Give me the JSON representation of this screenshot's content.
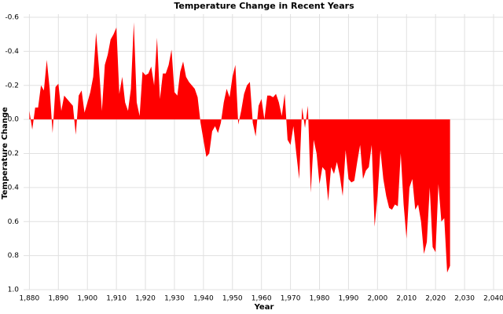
{
  "chart_data": {
    "type": "area",
    "title": "Temperature Change in Recent Years",
    "x_label": "Year",
    "y_label": "Temperature Change",
    "color": "#ff0000",
    "grid": true,
    "y_inverted": true,
    "xlim": [
      1878,
      2040
    ],
    "ylim": [
      -0.6,
      1.0
    ],
    "xticks": [
      {
        "value": 1880,
        "label": "1,880"
      },
      {
        "value": 1890,
        "label": "1,890"
      },
      {
        "value": 1900,
        "label": "1,900"
      },
      {
        "value": 1910,
        "label": "1,910"
      },
      {
        "value": 1920,
        "label": "1,920"
      },
      {
        "value": 1930,
        "label": "1,930"
      },
      {
        "value": 1940,
        "label": "1,940"
      },
      {
        "value": 1950,
        "label": "1,950"
      },
      {
        "value": 1960,
        "label": "1,960"
      },
      {
        "value": 1970,
        "label": "1,970"
      },
      {
        "value": 1980,
        "label": "1,980"
      },
      {
        "value": 1990,
        "label": "1,990"
      },
      {
        "value": 2000,
        "label": "2,000"
      },
      {
        "value": 2010,
        "label": "2,010"
      },
      {
        "value": 2020,
        "label": "2,020"
      },
      {
        "value": 2030,
        "label": "2,030"
      },
      {
        "value": 2040,
        "label": "2,040"
      }
    ],
    "yticks": [
      -0.6,
      -0.4,
      -0.2,
      {
        "value": 0,
        "label": "0.0"
      },
      0.2,
      0.4,
      0.6,
      0.8,
      {
        "value": 1,
        "label": "1.0"
      }
    ],
    "x": [
      1880,
      1881,
      1882,
      1883,
      1884,
      1885,
      1886,
      1887,
      1888,
      1889,
      1890,
      1891,
      1892,
      1893,
      1894,
      1895,
      1896,
      1897,
      1898,
      1899,
      1900,
      1901,
      1902,
      1903,
      1904,
      1905,
      1906,
      1907,
      1908,
      1909,
      1910,
      1911,
      1912,
      1913,
      1914,
      1915,
      1916,
      1917,
      1918,
      1919,
      1920,
      1921,
      1922,
      1923,
      1924,
      1925,
      1926,
      1927,
      1928,
      1929,
      1930,
      1931,
      1932,
      1933,
      1934,
      1935,
      1936,
      1937,
      1938,
      1939,
      1940,
      1941,
      1942,
      1943,
      1944,
      1945,
      1946,
      1947,
      1948,
      1949,
      1950,
      1951,
      1952,
      1953,
      1954,
      1955,
      1956,
      1957,
      1958,
      1959,
      1960,
      1961,
      1962,
      1963,
      1964,
      1965,
      1966,
      1967,
      1968,
      1969,
      1970,
      1971,
      1972,
      1973,
      1974,
      1975,
      1976,
      1977,
      1978,
      1979,
      1980,
      1981,
      1982,
      1983,
      1984,
      1985,
      1986,
      1987,
      1988,
      1989,
      1990,
      1991,
      1992,
      1993,
      1994,
      1995,
      1996,
      1997,
      1998,
      1999,
      2000,
      2001,
      2002,
      2003,
      2004,
      2005,
      2006,
      2007,
      2008,
      2009,
      2010,
      2011,
      2012,
      2013,
      2014,
      2015,
      2016,
      2017,
      2018,
      2019,
      2020,
      2021,
      2022,
      2023,
      2024,
      2025
    ],
    "values": [
      -0.05,
      0.06,
      -0.07,
      -0.07,
      -0.2,
      -0.17,
      -0.35,
      -0.18,
      0.08,
      -0.19,
      -0.21,
      -0.05,
      -0.14,
      -0.12,
      -0.1,
      -0.08,
      0.09,
      -0.14,
      -0.17,
      -0.04,
      -0.1,
      -0.16,
      -0.25,
      -0.51,
      -0.3,
      -0.05,
      -0.32,
      -0.38,
      -0.47,
      -0.5,
      -0.54,
      -0.15,
      -0.25,
      -0.1,
      -0.05,
      -0.18,
      -0.57,
      -0.1,
      -0.02,
      -0.28,
      -0.26,
      -0.27,
      -0.31,
      -0.2,
      -0.48,
      -0.12,
      -0.27,
      -0.27,
      -0.32,
      -0.41,
      -0.16,
      -0.14,
      -0.28,
      -0.34,
      -0.25,
      -0.22,
      -0.2,
      -0.18,
      -0.13,
      0.02,
      0.12,
      0.22,
      0.2,
      0.07,
      0.04,
      0.08,
      0.02,
      -0.1,
      -0.18,
      -0.13,
      -0.25,
      -0.32,
      0.03,
      -0.05,
      -0.15,
      -0.2,
      -0.22,
      0.02,
      0.1,
      -0.08,
      -0.12,
      0.0,
      -0.14,
      -0.14,
      -0.13,
      -0.15,
      -0.1,
      -0.02,
      -0.15,
      0.12,
      0.15,
      0.04,
      0.2,
      0.35,
      -0.07,
      0.05,
      -0.08,
      0.43,
      0.12,
      0.2,
      0.38,
      0.28,
      0.3,
      0.48,
      0.28,
      0.32,
      0.25,
      0.33,
      0.45,
      0.18,
      0.35,
      0.37,
      0.36,
      0.25,
      0.15,
      0.35,
      0.3,
      0.28,
      0.15,
      0.63,
      0.45,
      0.18,
      0.35,
      0.45,
      0.52,
      0.53,
      0.5,
      0.51,
      0.2,
      0.5,
      0.7,
      0.4,
      0.35,
      0.53,
      0.5,
      0.6,
      0.79,
      0.72,
      0.4,
      0.75,
      0.78,
      0.38,
      0.6,
      0.58,
      0.9,
      0.86
    ]
  }
}
